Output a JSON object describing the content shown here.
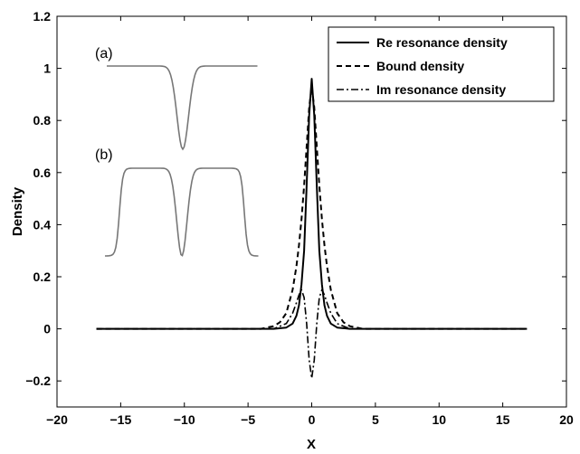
{
  "chart_data": {
    "type": "line",
    "title": "",
    "xlabel": "X",
    "ylabel": "Density",
    "xlim": [
      -20,
      20
    ],
    "ylim": [
      -0.3,
      1.2
    ],
    "xticks": [
      -20,
      -15,
      -10,
      -5,
      0,
      5,
      10,
      15,
      20
    ],
    "yticks": [
      -0.2,
      0,
      0.2,
      0.4,
      0.6,
      0.8,
      1,
      1.2
    ],
    "xtick_labels": [
      "−20",
      "−15",
      "−10",
      "−5",
      "0",
      "5",
      "10",
      "15",
      "20"
    ],
    "ytick_labels": [
      "−0.2",
      "0",
      "0.2",
      "0.4",
      "0.6",
      "0.8",
      "1",
      "1.2"
    ],
    "grid": false,
    "legend_position": "top-right",
    "series": [
      {
        "name": "Re resonance density",
        "style": "solid",
        "color": "#000000",
        "x": [
          -16.9,
          -3,
          -2,
          -1.5,
          -1.2,
          -1,
          -0.8,
          -0.6,
          -0.4,
          -0.2,
          0,
          0.2,
          0.4,
          0.6,
          0.8,
          1,
          1.2,
          1.5,
          2,
          3,
          16.9
        ],
        "y": [
          0,
          0,
          0.005,
          0.02,
          0.05,
          0.09,
          0.17,
          0.3,
          0.55,
          0.82,
          0.96,
          0.82,
          0.55,
          0.3,
          0.17,
          0.09,
          0.05,
          0.02,
          0.005,
          0,
          0
        ]
      },
      {
        "name": "Bound density",
        "style": "dashed",
        "color": "#000000",
        "x": [
          -16.9,
          -4,
          -3,
          -2.5,
          -2,
          -1.5,
          -1.2,
          -1,
          -0.8,
          -0.6,
          -0.4,
          -0.2,
          0,
          0.2,
          0.4,
          0.6,
          0.8,
          1,
          1.2,
          1.5,
          2,
          2.5,
          3,
          4,
          16.9
        ],
        "y": [
          0,
          0,
          0.01,
          0.025,
          0.06,
          0.15,
          0.24,
          0.32,
          0.42,
          0.55,
          0.7,
          0.85,
          0.93,
          0.85,
          0.7,
          0.55,
          0.42,
          0.32,
          0.24,
          0.15,
          0.06,
          0.025,
          0.01,
          0,
          0
        ]
      },
      {
        "name": "Im resonance density",
        "style": "dashdot",
        "color": "#000000",
        "x": [
          -16.9,
          -3,
          -2,
          -1.5,
          -1.2,
          -1,
          -0.8,
          -0.6,
          -0.4,
          -0.2,
          0,
          0.2,
          0.4,
          0.6,
          0.8,
          1,
          1.2,
          1.5,
          2,
          3,
          16.9
        ],
        "y": [
          0,
          0,
          0.02,
          0.06,
          0.1,
          0.13,
          0.15,
          0.12,
          0.02,
          -0.12,
          -0.19,
          -0.12,
          0.02,
          0.12,
          0.15,
          0.13,
          0.1,
          0.06,
          0.02,
          0,
          0
        ]
      }
    ],
    "insets": [
      {
        "label": "(a)",
        "profile": "single-well",
        "color": "#777777"
      },
      {
        "label": "(b)",
        "profile": "barrier-with-central-well",
        "color": "#777777"
      }
    ]
  }
}
